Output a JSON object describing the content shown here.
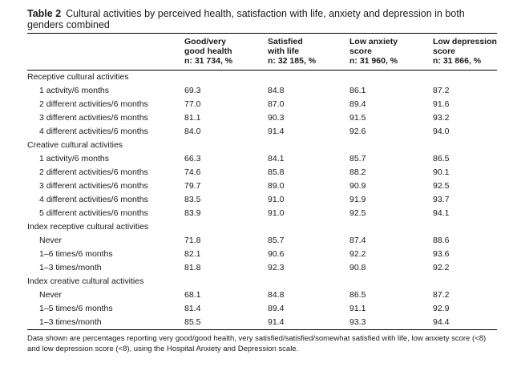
{
  "caption": {
    "label": "Table 2",
    "text": "Cultural activities by perceived health, satisfaction with life, anxiety and depression in both genders combined"
  },
  "columns": [
    {
      "l1": "Good/very",
      "l2": "good health",
      "l3": "n: 31 734, %"
    },
    {
      "l1": "Satisfied",
      "l2": "with life",
      "l3": "n: 32 185, %"
    },
    {
      "l1": "Low anxiety",
      "l2": "score",
      "l3": "n: 31 960, %"
    },
    {
      "l1": "Low depression",
      "l2": "score",
      "l3": "n: 31 866, %"
    }
  ],
  "sections": [
    {
      "title": "Receptive cultural activities",
      "rows": [
        {
          "label": "1 activity/6 months",
          "values": [
            "69.3",
            "84.8",
            "86.1",
            "87.2"
          ]
        },
        {
          "label": "2 different activities/6 months",
          "values": [
            "77.0",
            "87.0",
            "89.4",
            "91.6"
          ]
        },
        {
          "label": "3 different activities/6 months",
          "values": [
            "81.1",
            "90.3",
            "91.5",
            "93.2"
          ]
        },
        {
          "label": "4 different activities/6 months",
          "values": [
            "84.0",
            "91.4",
            "92.6",
            "94.0"
          ]
        }
      ]
    },
    {
      "title": "Creative cultural activities",
      "rows": [
        {
          "label": "1 activity/6 months",
          "values": [
            "66.3",
            "84.1",
            "85.7",
            "86.5"
          ]
        },
        {
          "label": "2 different activities/6 months",
          "values": [
            "74.6",
            "85.8",
            "88.2",
            "90.1"
          ]
        },
        {
          "label": "3 different activities/6 months",
          "values": [
            "79.7",
            "89.0",
            "90.9",
            "92.5"
          ]
        },
        {
          "label": "4 different activities/6 months",
          "values": [
            "83.5",
            "91.0",
            "91.9",
            "93.7"
          ]
        },
        {
          "label": "5 different activities/6 months",
          "values": [
            "83.9",
            "91.0",
            "92.5",
            "94.1"
          ]
        }
      ]
    },
    {
      "title": "Index receptive cultural activities",
      "rows": [
        {
          "label": "Never",
          "values": [
            "71.8",
            "85.7",
            "87.4",
            "88.6"
          ]
        },
        {
          "label": "1–6 times/6 months",
          "values": [
            "82.1",
            "90.6",
            "92.2",
            "93.6"
          ]
        },
        {
          "label": "1–3 times/month",
          "values": [
            "81.8",
            "92.3",
            "90.8",
            "92.2"
          ]
        }
      ]
    },
    {
      "title": "Index creative cultural activities",
      "rows": [
        {
          "label": "Never",
          "values": [
            "68.1",
            "84.8",
            "86.5",
            "87.2"
          ]
        },
        {
          "label": "1–5 times/6 months",
          "values": [
            "81.4",
            "89.4",
            "91.1",
            "92.9"
          ]
        },
        {
          "label": "1–3 times/month",
          "values": [
            "85.5",
            "91.4",
            "93.3",
            "94.4"
          ]
        }
      ]
    }
  ],
  "footnote": "Data shown are percentages reporting very good/good health, very satisfied/satisfied/somewhat satisfied with life, low anxiety score (<8) and low depression score (<8), using the Hospital Anxiety and Depression scale."
}
